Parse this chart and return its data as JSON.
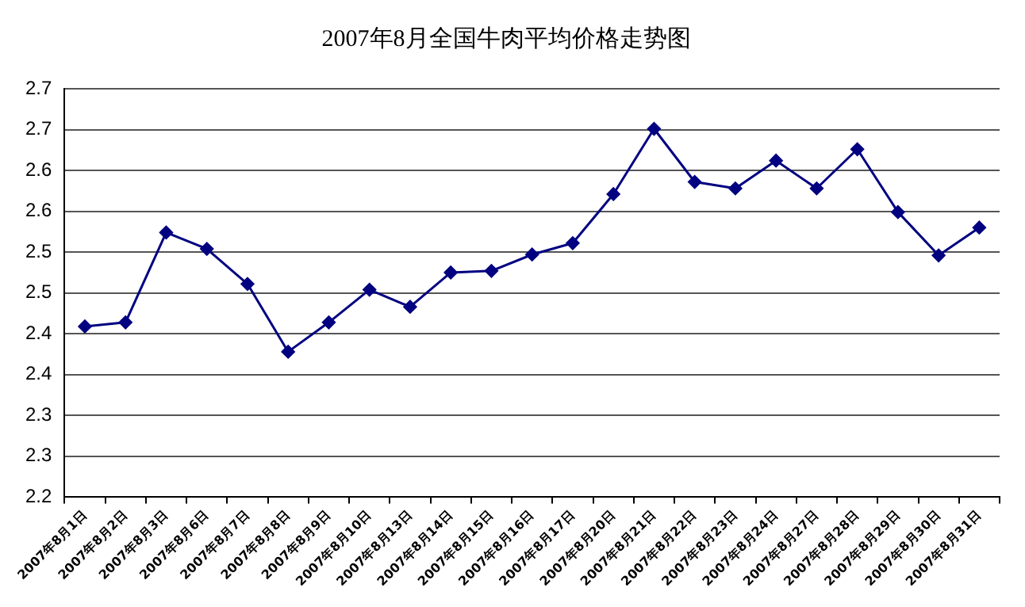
{
  "chart_data": {
    "type": "line",
    "title": "2007年8月全国牛肉平均价格走势图",
    "categories": [
      "2007年8月1日",
      "2007年8月2日",
      "2007年8月3日",
      "2007年8月6日",
      "2007年8月7日",
      "2007年8月8日",
      "2007年8月9日",
      "2007年8月10日",
      "2007年8月13日",
      "2007年8月14日",
      "2007年8月15日",
      "2007年8月16日",
      "2007年8月17日",
      "2007年8月20日",
      "2007年8月21日",
      "2007年8月22日",
      "2007年8月23日",
      "2007年8月24日",
      "2007年8月27日",
      "2007年8月28日",
      "2007年8月29日",
      "2007年8月30日",
      "2007年8月31日"
    ],
    "series": [
      {
        "color": "#000080",
        "values": [
          2.409,
          2.414,
          2.524,
          2.504,
          2.461,
          2.378,
          2.414,
          2.454,
          2.433,
          2.475,
          2.477,
          2.497,
          2.511,
          2.571,
          2.651,
          2.586,
          2.578,
          2.612,
          2.578,
          2.626,
          2.549,
          2.496,
          2.53
        ]
      }
    ],
    "ylim": [
      2.2,
      2.7
    ],
    "yticks": [
      {
        "value": 2.2,
        "label": "2.2"
      },
      {
        "value": 2.25,
        "label": "2.3"
      },
      {
        "value": 2.3,
        "label": "2.3"
      },
      {
        "value": 2.35,
        "label": "2.4"
      },
      {
        "value": 2.4,
        "label": "2.4"
      },
      {
        "value": 2.45,
        "label": "2.5"
      },
      {
        "value": 2.5,
        "label": "2.5"
      },
      {
        "value": 2.55,
        "label": "2.6"
      },
      {
        "value": 2.6,
        "label": "2.6"
      },
      {
        "value": 2.65,
        "label": "2.7"
      },
      {
        "value": 2.7,
        "label": "2.7"
      }
    ],
    "grid": "y",
    "legend": false,
    "marker": "diamond",
    "line_style": "solid"
  }
}
